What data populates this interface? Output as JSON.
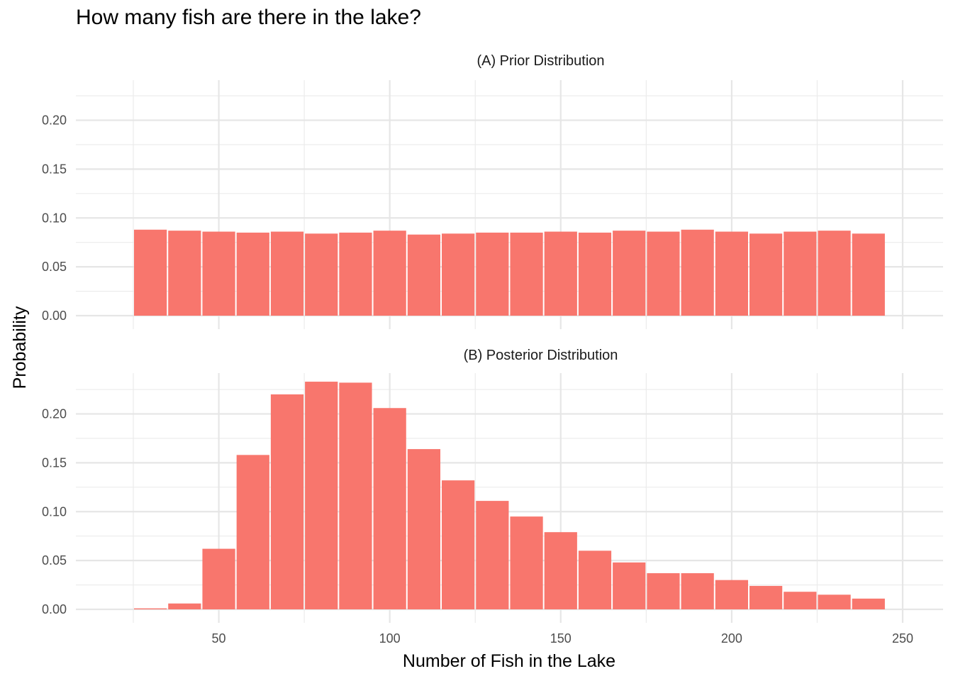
{
  "title": "How many fish are there in the lake?",
  "chart_data": {
    "type": "bar",
    "xlabel": "Number of Fish in the Lake",
    "ylabel": "Probability",
    "xlim": [
      20,
      253
    ],
    "x_ticks": [
      50,
      100,
      150,
      200,
      250
    ],
    "y_ticks": [
      0.0,
      0.05,
      0.1,
      0.15,
      0.2
    ],
    "ylim": [
      0,
      0.245
    ],
    "bin_width": 10,
    "bin_centers": [
      30,
      40,
      50,
      60,
      70,
      80,
      90,
      100,
      110,
      120,
      130,
      140,
      150,
      160,
      170,
      180,
      190,
      200,
      210,
      220,
      230,
      240
    ],
    "bar_color": "#F8766D",
    "grid": true,
    "panels": [
      {
        "strip": "(A) Prior Distribution",
        "values": [
          0.088,
          0.087,
          0.086,
          0.085,
          0.086,
          0.084,
          0.085,
          0.087,
          0.083,
          0.084,
          0.085,
          0.085,
          0.086,
          0.085,
          0.087,
          0.086,
          0.088,
          0.086,
          0.084,
          0.086,
          0.087,
          0.084
        ]
      },
      {
        "strip": "(B) Posterior Distribution",
        "values": [
          0.001,
          0.006,
          0.062,
          0.158,
          0.22,
          0.233,
          0.232,
          0.206,
          0.164,
          0.132,
          0.111,
          0.095,
          0.079,
          0.06,
          0.048,
          0.037,
          0.037,
          0.03,
          0.024,
          0.018,
          0.015,
          0.011
        ]
      }
    ]
  }
}
